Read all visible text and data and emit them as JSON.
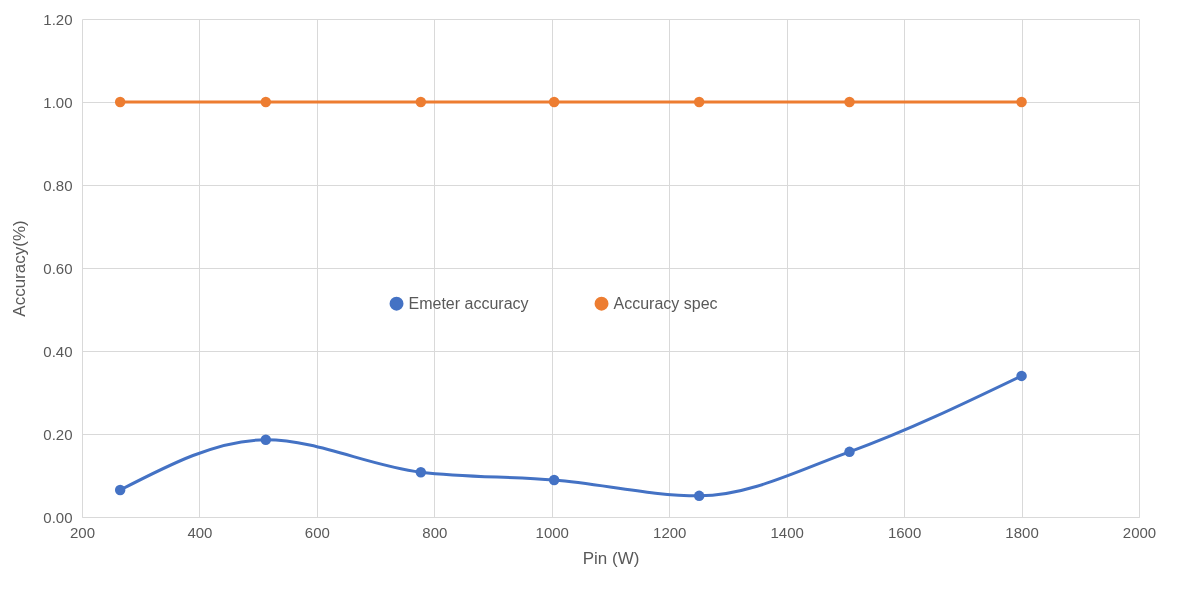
{
  "chart_data": {
    "type": "line",
    "xlabel": "Pin (W)",
    "ylabel": "Accuracy(%)",
    "x": [
      265,
      513,
      777,
      1004,
      1251,
      1507,
      1800
    ],
    "series": [
      {
        "name": "Emeter accuracy",
        "color": "#4472c4",
        "values": [
          0.065,
          0.186,
          0.108,
          0.089,
          0.051,
          0.157,
          0.34
        ]
      },
      {
        "name": "Accuracy spec",
        "color": "#ed7d31",
        "values": [
          1,
          1,
          1,
          1,
          1,
          1,
          1
        ]
      }
    ],
    "xlim": [
      200,
      2000
    ],
    "xticks": [
      200,
      400,
      600,
      800,
      1000,
      1200,
      1400,
      1600,
      1800,
      2000
    ],
    "ylim": [
      0,
      1.2
    ],
    "yticks": [
      {
        "value": 0,
        "label": "0.00"
      },
      {
        "value": 0.2,
        "label": "0.20"
      },
      {
        "value": 0.4,
        "label": "0.40"
      },
      {
        "value": 0.6,
        "label": "0.60"
      },
      {
        "value": 0.8,
        "label": "0.80"
      },
      {
        "value": 1,
        "label": "1.00"
      },
      {
        "value": 1.2,
        "label": "1.20"
      }
    ],
    "grid": true,
    "legend": "center",
    "marker": "circle",
    "line_style": "solid"
  }
}
